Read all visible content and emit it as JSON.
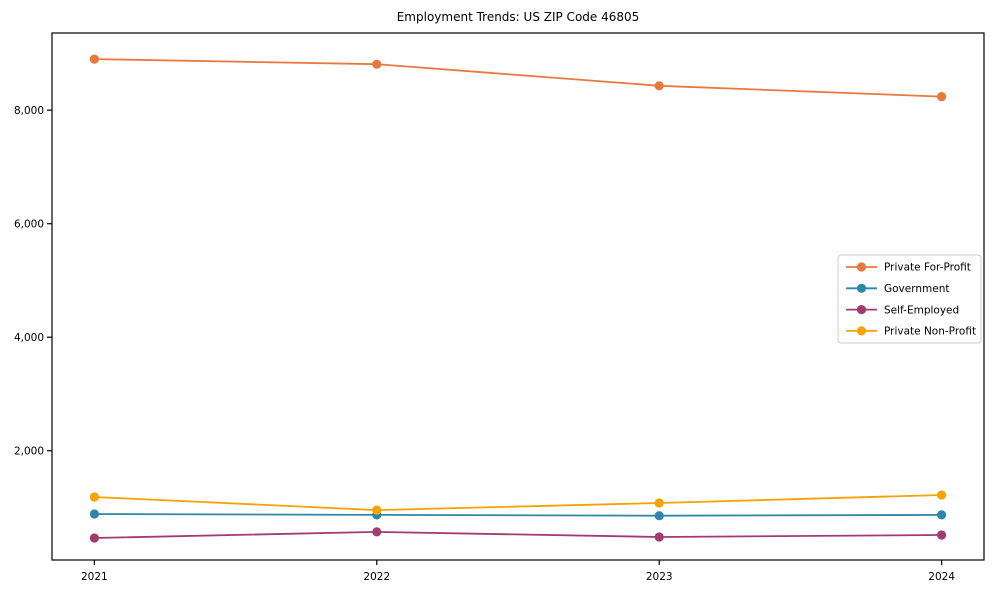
{
  "title": "Employment Trends: US ZIP Code 46805",
  "chart_data": {
    "type": "line",
    "title": "Employment Trends: US ZIP Code 46805",
    "xlabel": "",
    "ylabel": "",
    "x": [
      2021,
      2022,
      2023,
      2024
    ],
    "x_tick_labels": [
      "2021",
      "2022",
      "2023",
      "2024"
    ],
    "series": [
      {
        "name": "Private For-Profit",
        "color": "#E8793E",
        "values": [
          8900,
          8810,
          8430,
          8240
        ]
      },
      {
        "name": "Government",
        "color": "#2E86A8",
        "values": [
          885,
          870,
          855,
          870
        ]
      },
      {
        "name": "Self-Employed",
        "color": "#A23B72",
        "values": [
          462,
          570,
          480,
          515
        ]
      },
      {
        "name": "Private Non-Profit",
        "color": "#F5A302",
        "values": [
          1185,
          955,
          1080,
          1220
        ]
      }
    ],
    "yticks": [
      2000,
      4000,
      6000,
      8000
    ],
    "ytick_labels": [
      "2,000",
      "4,000",
      "6,000",
      "8,000"
    ],
    "ylim": [
      75,
      9360
    ],
    "xlim": [
      2020.85,
      2024.15
    ],
    "grid": false,
    "legend_position": "center right",
    "axis_color": "#000000",
    "legend_border_color": "#cccccc",
    "legend_background": "#ffffff"
  }
}
